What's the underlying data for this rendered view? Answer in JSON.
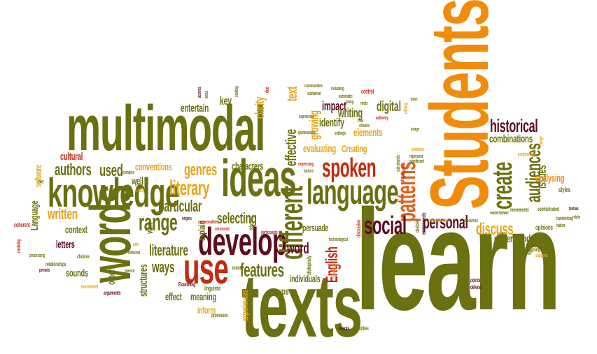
{
  "words": {
    "learn": "learn",
    "students": "Students",
    "texts": "texts",
    "multimodal": "multimodal",
    "words": "words",
    "knowledge": "knowledge",
    "language": "language",
    "ideas": "ideas",
    "develop": "develop",
    "use": "use",
    "different": "different",
    "create": "create",
    "spoken": "spoken",
    "patterns": "patterns",
    "social": "social",
    "range": "range",
    "literary": "literary",
    "personal": "personal",
    "features": "features",
    "audiences": "audiences",
    "historical": "historical",
    "authors": "authors",
    "used": "used",
    "genres": "genres",
    "characters": "characters",
    "particular": "particular",
    "selecting": "selecting",
    "written": "written",
    "literature": "literature",
    "ways": "ways",
    "discuss": "discuss",
    "word": "word",
    "english": "English",
    "effective": "effective",
    "evaluating": "evaluating",
    "creating": "Creating",
    "writing": "writing",
    "digital": "digital",
    "identify": "identify",
    "impact": "impact",
    "growing": "growing",
    "elements": "elements",
    "clarity": "clarity",
    "text": "text",
    "entertain": "entertain",
    "key": "key",
    "combinations": "combinations",
    "issues": "issues",
    "analysing": "analysing",
    "understand": "understand",
    "cultural": "cultural",
    "software": "software",
    "conventions": "conventions",
    "well": "well",
    "context": "context",
    "letters": "letters",
    "sounds": "sounds",
    "others": "others",
    "structures": "structures",
    "effect": "effect",
    "meaning": "meaning",
    "inform": "inform",
    "explain": "explain",
    "view": "view",
    "experiences": "experiences",
    "groups": "groups",
    "individuals": "individuals",
    "persuade": "persuade",
    "opinions": "opinions",
    "styles": "styles",
    "language2": "Language",
    "coherent": "coherent",
    "relationships": "relationships",
    "choices": "choices",
    "arguments": "arguments",
    "movement": "movement",
    "examining": "Examining",
    "linguistic": "linguistic",
    "processes": "processes",
    "events": "events",
    "identities": "identities",
    "narrating": "narrating",
    "strategically": "strategically",
    "technological": "technological",
    "discussion": "discussion",
    "devices": "devices",
    "environments": "environments",
    "movements": "movements",
    "sophisticated": "sophisticated",
    "handwriting": "handwriting",
    "relate": "relate",
    "textual": "textual",
    "designing": "designing",
    "appeal": "appeal",
    "supports": "supports",
    "points": "points",
    "defend": "defend",
    "structured": "structured",
    "speech": "speech",
    "sound": "sound",
    "reflected": "reflected",
    "complex": "complex",
    "come": "come",
    "using": "using",
    "may": "may",
    "periods": "periods",
    "processing": "processing",
    "rendering": "rendering",
    "accents": "accents",
    "areas": "areas",
    "seeking": "seeking",
    "due": "due",
    "expression": "expression",
    "grammatical": "grammatical",
    "settings": "settings",
    "new": "new",
    "strands": "strands",
    "roots": "roots",
    "authority": "authority",
    "control": "control",
    "base": "base",
    "refining": "refining",
    "image": "image",
    "sentence": "sentence",
    "represent": "represent",
    "significant": "significant",
    "communities": "communities",
    "including": "including",
    "sustained": "sustained",
    "automatic": "automatic",
    "along": "along",
    "delivering": "delivering",
    "participants": "participants",
    "origins": "origins",
    "commonalities": "commonalities",
    "generalisations": "generalisations",
    "resources": "resources",
    "purposefully": "purposefully",
    "change": "change",
    "nature": "nature",
    "reader_viewer": "reader/viewer",
    "substrands": "sub-strands",
    "developed": "developed",
    "factors": "factors",
    "expressing": "expressing",
    "part": "part"
  }
}
